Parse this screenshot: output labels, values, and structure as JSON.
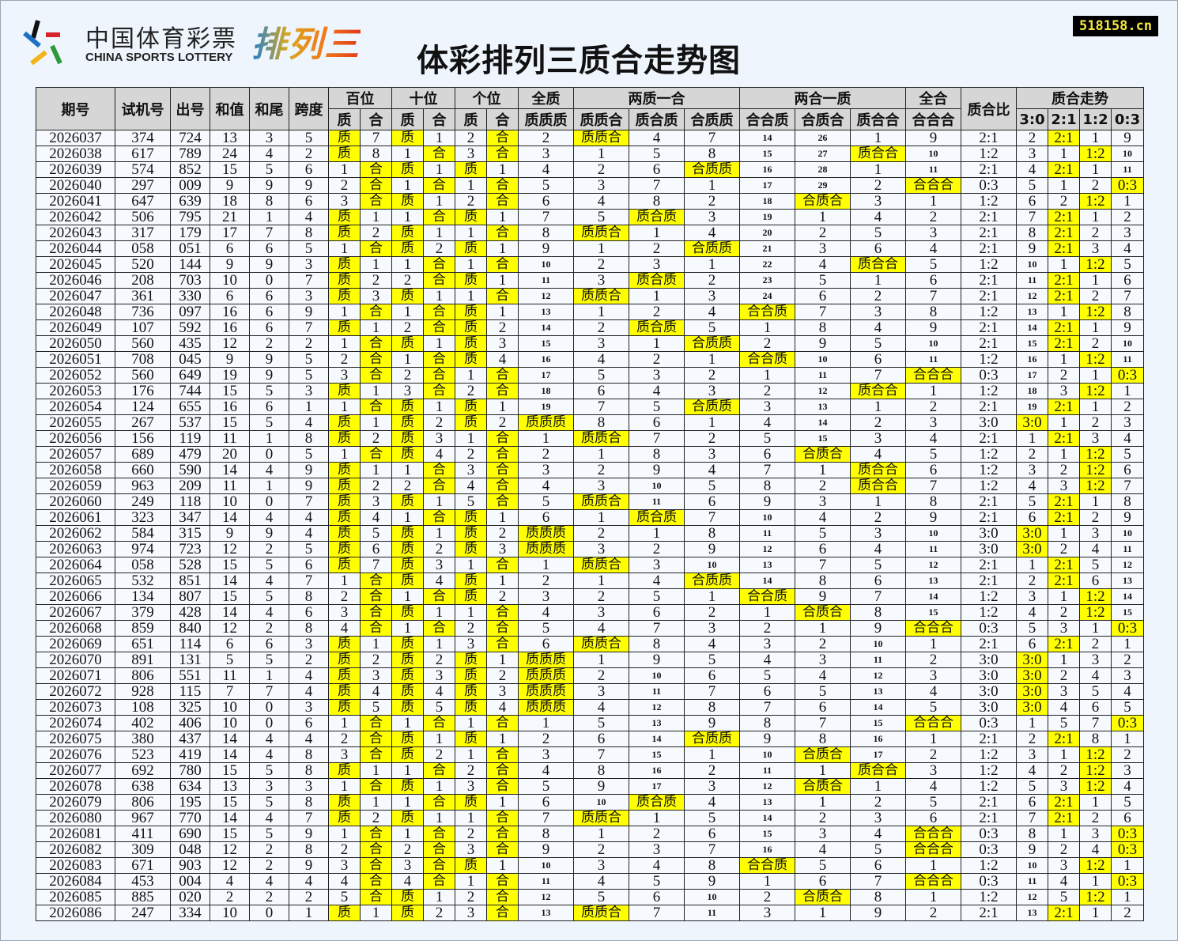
{
  "logo": {
    "cn": "中国体育彩票",
    "en": "CHINA SPORTS LOTTERY",
    "product": "排列三"
  },
  "title": "体彩排列三质合走势图",
  "site": "518158.cn",
  "colors": {
    "highlight": "#ffff00",
    "header": "#d6d6d6",
    "cell": "#f6faff",
    "background": "#eef5fd"
  },
  "header": {
    "top": [
      "期号",
      "试机号",
      "出号",
      "和值",
      "和尾",
      "跨度",
      "百位",
      "十位",
      "个位",
      "全质",
      "两质一合",
      "两合一质",
      "全合",
      "质合比",
      "质合走势"
    ],
    "sub": [
      "质",
      "合",
      "质",
      "合",
      "质",
      "合",
      "质质质",
      "质质合",
      "质合质",
      "合质质",
      "合合质",
      "合质合",
      "质合合",
      "合合合",
      "3:0",
      "2:1",
      "1:2",
      "0:3"
    ]
  },
  "rows": [
    [
      "2026037",
      "374",
      "724",
      "13",
      "3",
      "5",
      "质",
      "7",
      "质",
      "1",
      "2",
      "合",
      "2",
      "质质合",
      "4",
      "7",
      "14",
      "26",
      "1",
      "9",
      "2:1",
      "2",
      "2:1",
      "1",
      "9"
    ],
    [
      "2026038",
      "617",
      "789",
      "24",
      "4",
      "2",
      "质",
      "8",
      "1",
      "合",
      "3",
      "合",
      "3",
      "1",
      "5",
      "8",
      "15",
      "27",
      "质合合",
      "10",
      "1:2",
      "3",
      "1",
      "1:2",
      "10"
    ],
    [
      "2026039",
      "574",
      "852",
      "15",
      "5",
      "6",
      "1",
      "合",
      "质",
      "1",
      "质",
      "1",
      "4",
      "2",
      "6",
      "合质质",
      "16",
      "28",
      "1",
      "11",
      "2:1",
      "4",
      "2:1",
      "1",
      "11"
    ],
    [
      "2026040",
      "297",
      "009",
      "9",
      "9",
      "9",
      "2",
      "合",
      "1",
      "合",
      "1",
      "合",
      "5",
      "3",
      "7",
      "1",
      "17",
      "29",
      "2",
      "合合合",
      "0:3",
      "5",
      "1",
      "2",
      "0:3"
    ],
    [
      "2026041",
      "647",
      "639",
      "18",
      "8",
      "6",
      "3",
      "合",
      "质",
      "1",
      "2",
      "合",
      "6",
      "4",
      "8",
      "2",
      "18",
      "合质合",
      "3",
      "1",
      "1:2",
      "6",
      "2",
      "1:2",
      "1"
    ],
    [
      "2026042",
      "506",
      "795",
      "21",
      "1",
      "4",
      "质",
      "1",
      "1",
      "合",
      "质",
      "1",
      "7",
      "5",
      "质合质",
      "3",
      "19",
      "1",
      "4",
      "2",
      "2:1",
      "7",
      "2:1",
      "1",
      "2"
    ],
    [
      "2026043",
      "317",
      "179",
      "17",
      "7",
      "8",
      "质",
      "2",
      "质",
      "1",
      "1",
      "合",
      "8",
      "质质合",
      "1",
      "4",
      "20",
      "2",
      "5",
      "3",
      "2:1",
      "8",
      "2:1",
      "2",
      "3"
    ],
    [
      "2026044",
      "058",
      "051",
      "6",
      "6",
      "5",
      "1",
      "合",
      "质",
      "2",
      "质",
      "1",
      "9",
      "1",
      "2",
      "合质质",
      "21",
      "3",
      "6",
      "4",
      "2:1",
      "9",
      "2:1",
      "3",
      "4"
    ],
    [
      "2026045",
      "520",
      "144",
      "9",
      "9",
      "3",
      "质",
      "1",
      "1",
      "合",
      "1",
      "合",
      "10",
      "2",
      "3",
      "1",
      "22",
      "4",
      "质合合",
      "5",
      "1:2",
      "10",
      "1",
      "1:2",
      "5"
    ],
    [
      "2026046",
      "208",
      "703",
      "10",
      "0",
      "7",
      "质",
      "2",
      "2",
      "合",
      "质",
      "1",
      "11",
      "3",
      "质合质",
      "2",
      "23",
      "5",
      "1",
      "6",
      "2:1",
      "11",
      "2:1",
      "1",
      "6"
    ],
    [
      "2026047",
      "361",
      "330",
      "6",
      "6",
      "3",
      "质",
      "3",
      "质",
      "1",
      "1",
      "合",
      "12",
      "质质合",
      "1",
      "3",
      "24",
      "6",
      "2",
      "7",
      "2:1",
      "12",
      "2:1",
      "2",
      "7"
    ],
    [
      "2026048",
      "736",
      "097",
      "16",
      "6",
      "9",
      "1",
      "合",
      "1",
      "合",
      "质",
      "1",
      "13",
      "1",
      "2",
      "4",
      "合合质",
      "7",
      "3",
      "8",
      "1:2",
      "13",
      "1",
      "1:2",
      "8"
    ],
    [
      "2026049",
      "107",
      "592",
      "16",
      "6",
      "7",
      "质",
      "1",
      "2",
      "合",
      "质",
      "2",
      "14",
      "2",
      "质合质",
      "5",
      "1",
      "8",
      "4",
      "9",
      "2:1",
      "14",
      "2:1",
      "1",
      "9"
    ],
    [
      "2026050",
      "560",
      "435",
      "12",
      "2",
      "2",
      "1",
      "合",
      "质",
      "1",
      "质",
      "3",
      "15",
      "3",
      "1",
      "合质质",
      "2",
      "9",
      "5",
      "10",
      "2:1",
      "15",
      "2:1",
      "2",
      "10"
    ],
    [
      "2026051",
      "708",
      "045",
      "9",
      "9",
      "5",
      "2",
      "合",
      "1",
      "合",
      "质",
      "4",
      "16",
      "4",
      "2",
      "1",
      "合合质",
      "10",
      "6",
      "11",
      "1:2",
      "16",
      "1",
      "1:2",
      "11"
    ],
    [
      "2026052",
      "560",
      "649",
      "19",
      "9",
      "5",
      "3",
      "合",
      "2",
      "合",
      "1",
      "合",
      "17",
      "5",
      "3",
      "2",
      "1",
      "11",
      "7",
      "合合合",
      "0:3",
      "17",
      "2",
      "1",
      "0:3"
    ],
    [
      "2026053",
      "176",
      "744",
      "15",
      "5",
      "3",
      "质",
      "1",
      "3",
      "合",
      "2",
      "合",
      "18",
      "6",
      "4",
      "3",
      "2",
      "12",
      "质合合",
      "1",
      "1:2",
      "18",
      "3",
      "1:2",
      "1"
    ],
    [
      "2026054",
      "124",
      "655",
      "16",
      "6",
      "1",
      "1",
      "合",
      "质",
      "1",
      "质",
      "1",
      "19",
      "7",
      "5",
      "合质质",
      "3",
      "13",
      "1",
      "2",
      "2:1",
      "19",
      "2:1",
      "1",
      "2"
    ],
    [
      "2026055",
      "267",
      "537",
      "15",
      "5",
      "4",
      "质",
      "1",
      "质",
      "2",
      "质",
      "2",
      "质质质",
      "8",
      "6",
      "1",
      "4",
      "14",
      "2",
      "3",
      "3:0",
      "3:0",
      "1",
      "2",
      "3"
    ],
    [
      "2026056",
      "156",
      "119",
      "11",
      "1",
      "8",
      "质",
      "2",
      "质",
      "3",
      "1",
      "合",
      "1",
      "质质合",
      "7",
      "2",
      "5",
      "15",
      "3",
      "4",
      "2:1",
      "1",
      "2:1",
      "3",
      "4"
    ],
    [
      "2026057",
      "689",
      "479",
      "20",
      "0",
      "5",
      "1",
      "合",
      "质",
      "4",
      "2",
      "合",
      "2",
      "1",
      "8",
      "3",
      "6",
      "合质合",
      "4",
      "5",
      "1:2",
      "2",
      "1",
      "1:2",
      "5"
    ],
    [
      "2026058",
      "660",
      "590",
      "14",
      "4",
      "9",
      "质",
      "1",
      "1",
      "合",
      "3",
      "合",
      "3",
      "2",
      "9",
      "4",
      "7",
      "1",
      "质合合",
      "6",
      "1:2",
      "3",
      "2",
      "1:2",
      "6"
    ],
    [
      "2026059",
      "963",
      "209",
      "11",
      "1",
      "9",
      "质",
      "2",
      "2",
      "合",
      "4",
      "合",
      "4",
      "3",
      "10",
      "5",
      "8",
      "2",
      "质合合",
      "7",
      "1:2",
      "4",
      "3",
      "1:2",
      "7"
    ],
    [
      "2026060",
      "249",
      "118",
      "10",
      "0",
      "7",
      "质",
      "3",
      "质",
      "1",
      "5",
      "合",
      "5",
      "质质合",
      "11",
      "6",
      "9",
      "3",
      "1",
      "8",
      "2:1",
      "5",
      "2:1",
      "1",
      "8"
    ],
    [
      "2026061",
      "323",
      "347",
      "14",
      "4",
      "4",
      "质",
      "4",
      "1",
      "合",
      "质",
      "1",
      "6",
      "1",
      "质合质",
      "7",
      "10",
      "4",
      "2",
      "9",
      "2:1",
      "6",
      "2:1",
      "2",
      "9"
    ],
    [
      "2026062",
      "584",
      "315",
      "9",
      "9",
      "4",
      "质",
      "5",
      "质",
      "1",
      "质",
      "2",
      "质质质",
      "2",
      "1",
      "8",
      "11",
      "5",
      "3",
      "10",
      "3:0",
      "3:0",
      "1",
      "3",
      "10"
    ],
    [
      "2026063",
      "974",
      "723",
      "12",
      "2",
      "5",
      "质",
      "6",
      "质",
      "2",
      "质",
      "3",
      "质质质",
      "3",
      "2",
      "9",
      "12",
      "6",
      "4",
      "11",
      "3:0",
      "3:0",
      "2",
      "4",
      "11"
    ],
    [
      "2026064",
      "058",
      "528",
      "15",
      "5",
      "6",
      "质",
      "7",
      "质",
      "3",
      "1",
      "合",
      "1",
      "质质合",
      "3",
      "10",
      "13",
      "7",
      "5",
      "12",
      "2:1",
      "1",
      "2:1",
      "5",
      "12"
    ],
    [
      "2026065",
      "532",
      "851",
      "14",
      "4",
      "7",
      "1",
      "合",
      "质",
      "4",
      "质",
      "1",
      "2",
      "1",
      "4",
      "合质质",
      "14",
      "8",
      "6",
      "13",
      "2:1",
      "2",
      "2:1",
      "6",
      "13"
    ],
    [
      "2026066",
      "134",
      "807",
      "15",
      "5",
      "8",
      "2",
      "合",
      "1",
      "合",
      "质",
      "2",
      "3",
      "2",
      "5",
      "1",
      "合合质",
      "9",
      "7",
      "14",
      "1:2",
      "3",
      "1",
      "1:2",
      "14"
    ],
    [
      "2026067",
      "379",
      "428",
      "14",
      "4",
      "6",
      "3",
      "合",
      "质",
      "1",
      "1",
      "合",
      "4",
      "3",
      "6",
      "2",
      "1",
      "合质合",
      "8",
      "15",
      "1:2",
      "4",
      "2",
      "1:2",
      "15"
    ],
    [
      "2026068",
      "859",
      "840",
      "12",
      "2",
      "8",
      "4",
      "合",
      "1",
      "合",
      "2",
      "合",
      "5",
      "4",
      "7",
      "3",
      "2",
      "1",
      "9",
      "合合合",
      "0:3",
      "5",
      "3",
      "1",
      "0:3"
    ],
    [
      "2026069",
      "651",
      "114",
      "6",
      "6",
      "3",
      "质",
      "1",
      "质",
      "1",
      "3",
      "合",
      "6",
      "质质合",
      "8",
      "4",
      "3",
      "2",
      "10",
      "1",
      "2:1",
      "6",
      "2:1",
      "2",
      "1"
    ],
    [
      "2026070",
      "891",
      "131",
      "5",
      "5",
      "2",
      "质",
      "2",
      "质",
      "2",
      "质",
      "1",
      "质质质",
      "1",
      "9",
      "5",
      "4",
      "3",
      "11",
      "2",
      "3:0",
      "3:0",
      "1",
      "3",
      "2"
    ],
    [
      "2026071",
      "806",
      "551",
      "11",
      "1",
      "4",
      "质",
      "3",
      "质",
      "3",
      "质",
      "2",
      "质质质",
      "2",
      "10",
      "6",
      "5",
      "4",
      "12",
      "3",
      "3:0",
      "3:0",
      "2",
      "4",
      "3"
    ],
    [
      "2026072",
      "928",
      "115",
      "7",
      "7",
      "4",
      "质",
      "4",
      "质",
      "4",
      "质",
      "3",
      "质质质",
      "3",
      "11",
      "7",
      "6",
      "5",
      "13",
      "4",
      "3:0",
      "3:0",
      "3",
      "5",
      "4"
    ],
    [
      "2026073",
      "108",
      "325",
      "10",
      "0",
      "3",
      "质",
      "5",
      "质",
      "5",
      "质",
      "4",
      "质质质",
      "4",
      "12",
      "8",
      "7",
      "6",
      "14",
      "5",
      "3:0",
      "3:0",
      "4",
      "6",
      "5"
    ],
    [
      "2026074",
      "402",
      "406",
      "10",
      "0",
      "6",
      "1",
      "合",
      "1",
      "合",
      "1",
      "合",
      "1",
      "5",
      "13",
      "9",
      "8",
      "7",
      "15",
      "合合合",
      "0:3",
      "1",
      "5",
      "7",
      "0:3"
    ],
    [
      "2026075",
      "380",
      "437",
      "14",
      "4",
      "4",
      "2",
      "合",
      "质",
      "1",
      "质",
      "1",
      "2",
      "6",
      "14",
      "合质质",
      "9",
      "8",
      "16",
      "1",
      "2:1",
      "2",
      "2:1",
      "8",
      "1"
    ],
    [
      "2026076",
      "523",
      "419",
      "14",
      "4",
      "8",
      "3",
      "合",
      "质",
      "2",
      "1",
      "合",
      "3",
      "7",
      "15",
      "1",
      "10",
      "合质合",
      "17",
      "2",
      "1:2",
      "3",
      "1",
      "1:2",
      "2"
    ],
    [
      "2026077",
      "692",
      "780",
      "15",
      "5",
      "8",
      "质",
      "1",
      "1",
      "合",
      "2",
      "合",
      "4",
      "8",
      "16",
      "2",
      "11",
      "1",
      "质合合",
      "3",
      "1:2",
      "4",
      "2",
      "1:2",
      "3"
    ],
    [
      "2026078",
      "638",
      "634",
      "13",
      "3",
      "3",
      "1",
      "合",
      "质",
      "1",
      "3",
      "合",
      "5",
      "9",
      "17",
      "3",
      "12",
      "合质合",
      "1",
      "4",
      "1:2",
      "5",
      "3",
      "1:2",
      "4"
    ],
    [
      "2026079",
      "806",
      "195",
      "15",
      "5",
      "8",
      "质",
      "1",
      "1",
      "合",
      "质",
      "1",
      "6",
      "10",
      "质合质",
      "4",
      "13",
      "1",
      "2",
      "5",
      "2:1",
      "6",
      "2:1",
      "1",
      "5"
    ],
    [
      "2026080",
      "967",
      "770",
      "14",
      "4",
      "7",
      "质",
      "2",
      "质",
      "1",
      "1",
      "合",
      "7",
      "质质合",
      "1",
      "5",
      "14",
      "2",
      "3",
      "6",
      "2:1",
      "7",
      "2:1",
      "2",
      "6"
    ],
    [
      "2026081",
      "411",
      "690",
      "15",
      "5",
      "9",
      "1",
      "合",
      "1",
      "合",
      "2",
      "合",
      "8",
      "1",
      "2",
      "6",
      "15",
      "3",
      "4",
      "合合合",
      "0:3",
      "8",
      "1",
      "3",
      "0:3"
    ],
    [
      "2026082",
      "309",
      "048",
      "12",
      "2",
      "8",
      "2",
      "合",
      "2",
      "合",
      "3",
      "合",
      "9",
      "2",
      "3",
      "7",
      "16",
      "4",
      "5",
      "合合合",
      "0:3",
      "9",
      "2",
      "4",
      "0:3"
    ],
    [
      "2026083",
      "671",
      "903",
      "12",
      "2",
      "9",
      "3",
      "合",
      "3",
      "合",
      "质",
      "1",
      "10",
      "3",
      "4",
      "8",
      "合合质",
      "5",
      "6",
      "1",
      "1:2",
      "10",
      "3",
      "1:2",
      "1"
    ],
    [
      "2026084",
      "453",
      "004",
      "4",
      "4",
      "4",
      "4",
      "合",
      "4",
      "合",
      "1",
      "合",
      "11",
      "4",
      "5",
      "9",
      "1",
      "6",
      "7",
      "合合合",
      "0:3",
      "11",
      "4",
      "1",
      "0:3"
    ],
    [
      "2026085",
      "885",
      "020",
      "2",
      "2",
      "2",
      "5",
      "合",
      "质",
      "1",
      "2",
      "合",
      "12",
      "5",
      "6",
      "10",
      "2",
      "合质合",
      "8",
      "1",
      "1:2",
      "12",
      "5",
      "1:2",
      "1"
    ],
    [
      "2026086",
      "247",
      "334",
      "10",
      "0",
      "1",
      "质",
      "1",
      "质",
      "2",
      "3",
      "合",
      "13",
      "质质合",
      "7",
      "11",
      "3",
      "1",
      "9",
      "2",
      "2:1",
      "13",
      "2:1",
      "1",
      "2"
    ]
  ]
}
